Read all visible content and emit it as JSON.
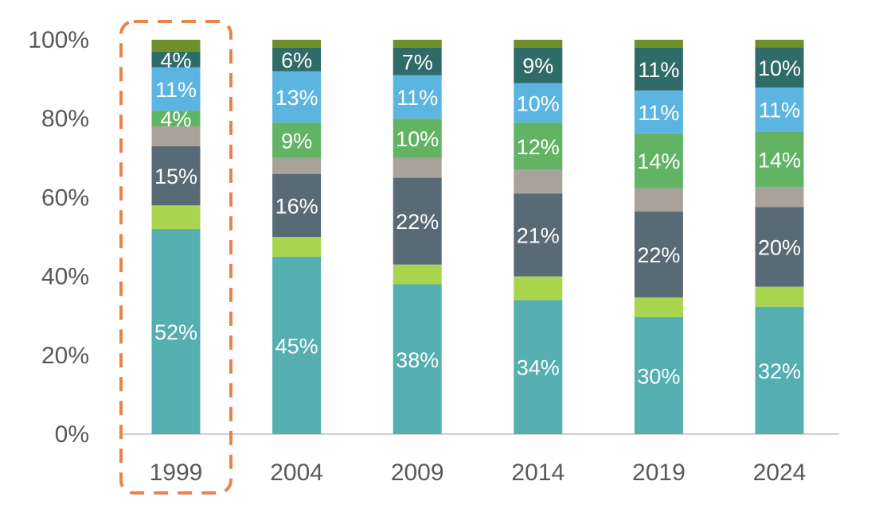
{
  "chart_data": {
    "type": "bar",
    "stacked": true,
    "categories": [
      "1999",
      "2004",
      "2009",
      "2014",
      "2019",
      "2024"
    ],
    "ylim": [
      0,
      100
    ],
    "yticks": [
      "0%",
      "20%",
      "40%",
      "60%",
      "80%",
      "100%"
    ],
    "grid": false,
    "highlight": {
      "category": "1999",
      "style": "dashed-box",
      "color": "#E8834A"
    },
    "series": [
      {
        "color": "#55AEAF",
        "values": [
          52,
          45,
          38,
          34,
          30,
          32
        ],
        "labels": [
          "52%",
          "45%",
          "38%",
          "34%",
          "30%",
          "32%"
        ]
      },
      {
        "color": "#A9D44E",
        "values": [
          6,
          5,
          5,
          6,
          5,
          5
        ],
        "labels": [
          "",
          "",
          "",
          "",
          "",
          ""
        ]
      },
      {
        "color": "#596A77",
        "values": [
          15,
          16,
          22,
          21,
          22,
          20
        ],
        "labels": [
          "15%",
          "16%",
          "22%",
          "21%",
          "22%",
          "20%"
        ]
      },
      {
        "color": "#A8A29A",
        "values": [
          5,
          4,
          5,
          6,
          6,
          5
        ],
        "labels": [
          "",
          "",
          "",
          "",
          "",
          ""
        ]
      },
      {
        "color": "#62B464",
        "values": [
          4,
          9,
          10,
          12,
          14,
          14
        ],
        "labels": [
          "4%",
          "9%",
          "10%",
          "12%",
          "14%",
          "14%"
        ]
      },
      {
        "color": "#5CB5E1",
        "values": [
          11,
          13,
          11,
          10,
          11,
          11
        ],
        "labels": [
          "11%",
          "13%",
          "11%",
          "10%",
          "11%",
          "11%"
        ]
      },
      {
        "color": "#2F6B68",
        "values": [
          4,
          6,
          7,
          9,
          11,
          10
        ],
        "labels": [
          "4%",
          "6%",
          "7%",
          "9%",
          "11%",
          "10%"
        ]
      },
      {
        "color": "#6E8F2A",
        "values": [
          3,
          2,
          2,
          2,
          2,
          2
        ],
        "labels": [
          "",
          "",
          "",
          "",
          "",
          ""
        ]
      }
    ]
  }
}
